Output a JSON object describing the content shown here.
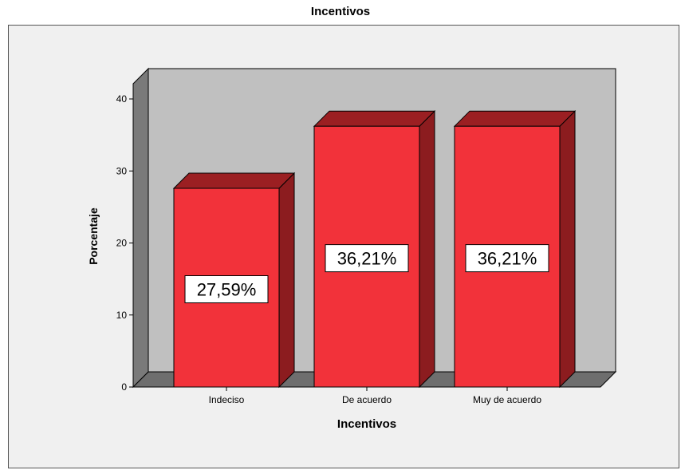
{
  "chart_data": {
    "type": "bar",
    "title": "Incentivos",
    "xlabel": "Incentivos",
    "ylabel": "Porcentaje",
    "categories": [
      "Indeciso",
      "De acuerdo",
      "Muy de acuerdo"
    ],
    "values": [
      27.59,
      36.21,
      36.21
    ],
    "data_labels": [
      "27,59%",
      "36,21%",
      "36,21%"
    ],
    "yticks": [
      "0",
      "10",
      "20",
      "30",
      "40"
    ],
    "ylim": [
      0,
      42
    ],
    "grid": false,
    "legend": "none",
    "style": "3d-bar",
    "colors": {
      "bar_front": "#f2323a",
      "bar_top": "#9b1f22",
      "bar_side": "#8c1c1f",
      "back_wall": "#c0c0c0",
      "side_wall": "#7a7a7a",
      "floor": "#6e6e6e",
      "panel": "#f0f0f0"
    }
  }
}
